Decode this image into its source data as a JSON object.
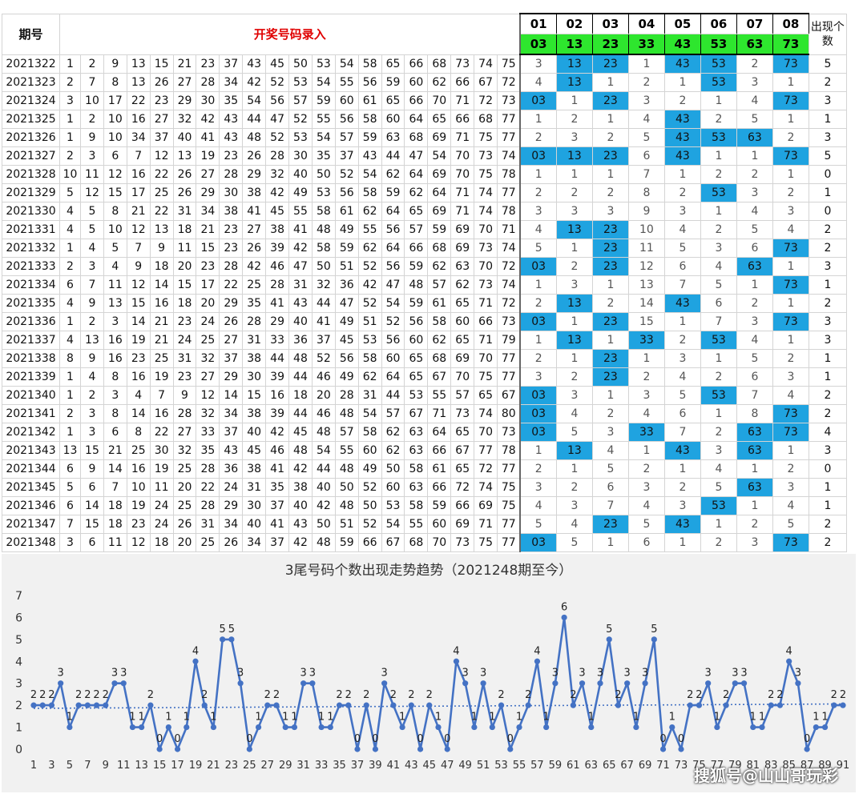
{
  "table": {
    "header": {
      "issue_label": "期号",
      "entry_label": "开奖号码录入",
      "positions": [
        "01",
        "02",
        "03",
        "04",
        "05",
        "06",
        "07",
        "08"
      ],
      "tails": [
        "03",
        "13",
        "23",
        "33",
        "43",
        "53",
        "63",
        "73"
      ],
      "count_label": "出现个数"
    },
    "rows": [
      {
        "issue": "2021322",
        "nums": [
          1,
          2,
          9,
          13,
          15,
          21,
          23,
          37,
          43,
          45,
          50,
          53,
          54,
          58,
          65,
          66,
          68,
          73,
          74,
          75
        ],
        "pos": [
          "3",
          "13",
          "23",
          "1",
          "43",
          "53",
          "2",
          "73"
        ],
        "count": "5"
      },
      {
        "issue": "2021323",
        "nums": [
          2,
          7,
          8,
          13,
          26,
          27,
          28,
          34,
          42,
          52,
          53,
          54,
          55,
          56,
          59,
          60,
          62,
          66,
          67,
          72
        ],
        "pos": [
          "4",
          "13",
          "1",
          "2",
          "1",
          "53",
          "3",
          "1"
        ],
        "count": "2"
      },
      {
        "issue": "2021324",
        "nums": [
          3,
          10,
          17,
          22,
          23,
          29,
          30,
          35,
          54,
          56,
          57,
          59,
          60,
          61,
          65,
          66,
          70,
          71,
          72,
          73
        ],
        "pos": [
          "03",
          "1",
          "23",
          "3",
          "2",
          "1",
          "4",
          "73"
        ],
        "count": "3"
      },
      {
        "issue": "2021325",
        "nums": [
          1,
          2,
          10,
          16,
          27,
          32,
          42,
          43,
          44,
          47,
          52,
          55,
          56,
          58,
          60,
          64,
          65,
          66,
          68,
          77
        ],
        "pos": [
          "1",
          "2",
          "1",
          "4",
          "43",
          "2",
          "5",
          "1"
        ],
        "count": "1"
      },
      {
        "issue": "2021326",
        "nums": [
          1,
          9,
          10,
          34,
          37,
          40,
          41,
          43,
          48,
          52,
          53,
          54,
          57,
          59,
          63,
          68,
          69,
          71,
          75,
          77
        ],
        "pos": [
          "2",
          "3",
          "2",
          "5",
          "43",
          "53",
          "63",
          "2"
        ],
        "count": "3"
      },
      {
        "issue": "2021327",
        "nums": [
          2,
          3,
          6,
          7,
          12,
          13,
          19,
          23,
          26,
          28,
          30,
          35,
          37,
          43,
          44,
          47,
          54,
          70,
          73,
          74
        ],
        "pos": [
          "03",
          "13",
          "23",
          "6",
          "43",
          "1",
          "1",
          "73"
        ],
        "count": "5"
      },
      {
        "issue": "2021328",
        "nums": [
          10,
          11,
          12,
          16,
          22,
          26,
          27,
          28,
          29,
          32,
          40,
          50,
          52,
          54,
          62,
          64,
          69,
          70,
          75,
          78
        ],
        "pos": [
          "1",
          "1",
          "1",
          "7",
          "1",
          "2",
          "2",
          "1"
        ],
        "count": "0"
      },
      {
        "issue": "2021329",
        "nums": [
          5,
          12,
          15,
          17,
          25,
          26,
          29,
          30,
          38,
          42,
          49,
          53,
          56,
          58,
          59,
          62,
          64,
          71,
          74,
          77
        ],
        "pos": [
          "2",
          "2",
          "2",
          "8",
          "2",
          "53",
          "3",
          "2"
        ],
        "count": "1"
      },
      {
        "issue": "2021330",
        "nums": [
          4,
          5,
          8,
          21,
          22,
          31,
          34,
          38,
          41,
          45,
          55,
          58,
          61,
          62,
          64,
          65,
          69,
          71,
          74,
          78
        ],
        "pos": [
          "3",
          "3",
          "3",
          "9",
          "3",
          "1",
          "4",
          "3"
        ],
        "count": "0"
      },
      {
        "issue": "2021331",
        "nums": [
          4,
          5,
          10,
          12,
          13,
          18,
          21,
          23,
          27,
          38,
          41,
          48,
          49,
          55,
          56,
          57,
          59,
          69,
          70,
          71
        ],
        "pos": [
          "4",
          "13",
          "23",
          "10",
          "4",
          "2",
          "5",
          "4"
        ],
        "count": "2"
      },
      {
        "issue": "2021332",
        "nums": [
          1,
          4,
          5,
          7,
          9,
          11,
          15,
          23,
          26,
          39,
          42,
          58,
          59,
          62,
          64,
          66,
          68,
          69,
          73,
          74
        ],
        "pos": [
          "5",
          "1",
          "23",
          "11",
          "5",
          "3",
          "6",
          "73"
        ],
        "count": "2"
      },
      {
        "issue": "2021333",
        "nums": [
          2,
          3,
          4,
          9,
          18,
          20,
          23,
          28,
          42,
          46,
          47,
          50,
          51,
          52,
          56,
          59,
          62,
          63,
          70,
          72
        ],
        "pos": [
          "03",
          "2",
          "23",
          "12",
          "6",
          "4",
          "63",
          "1"
        ],
        "count": "3"
      },
      {
        "issue": "2021334",
        "nums": [
          6,
          7,
          11,
          12,
          14,
          15,
          17,
          22,
          25,
          28,
          31,
          32,
          36,
          42,
          47,
          48,
          57,
          62,
          73,
          74
        ],
        "pos": [
          "1",
          "3",
          "1",
          "13",
          "7",
          "5",
          "1",
          "73"
        ],
        "count": "1"
      },
      {
        "issue": "2021335",
        "nums": [
          4,
          9,
          13,
          15,
          16,
          18,
          20,
          29,
          35,
          41,
          43,
          44,
          47,
          52,
          54,
          59,
          61,
          65,
          71,
          72
        ],
        "pos": [
          "2",
          "13",
          "2",
          "14",
          "43",
          "6",
          "2",
          "1"
        ],
        "count": "2"
      },
      {
        "issue": "2021336",
        "nums": [
          1,
          2,
          3,
          14,
          21,
          23,
          24,
          26,
          28,
          29,
          40,
          41,
          49,
          51,
          52,
          56,
          58,
          60,
          66,
          73
        ],
        "pos": [
          "03",
          "1",
          "23",
          "15",
          "1",
          "7",
          "3",
          "73"
        ],
        "count": "3"
      },
      {
        "issue": "2021337",
        "nums": [
          4,
          13,
          16,
          19,
          21,
          24,
          25,
          27,
          31,
          33,
          36,
          37,
          45,
          53,
          56,
          60,
          62,
          65,
          71,
          79
        ],
        "pos": [
          "1",
          "13",
          "1",
          "33",
          "2",
          "53",
          "4",
          "1"
        ],
        "count": "3"
      },
      {
        "issue": "2021338",
        "nums": [
          8,
          9,
          16,
          23,
          25,
          31,
          32,
          37,
          38,
          44,
          48,
          52,
          56,
          58,
          60,
          65,
          68,
          69,
          70,
          77
        ],
        "pos": [
          "2",
          "1",
          "23",
          "1",
          "3",
          "1",
          "5",
          "2"
        ],
        "count": "1"
      },
      {
        "issue": "2021339",
        "nums": [
          1,
          4,
          8,
          16,
          19,
          23,
          27,
          29,
          30,
          39,
          44,
          46,
          49,
          62,
          64,
          65,
          67,
          70,
          75,
          77
        ],
        "pos": [
          "3",
          "2",
          "23",
          "2",
          "4",
          "2",
          "6",
          "3"
        ],
        "count": "1"
      },
      {
        "issue": "2021340",
        "nums": [
          1,
          2,
          3,
          4,
          7,
          9,
          12,
          14,
          15,
          16,
          18,
          20,
          28,
          31,
          44,
          53,
          55,
          57,
          65,
          67
        ],
        "pos": [
          "03",
          "3",
          "1",
          "3",
          "5",
          "53",
          "7",
          "4"
        ],
        "count": "2"
      },
      {
        "issue": "2021341",
        "nums": [
          2,
          3,
          8,
          14,
          16,
          28,
          32,
          34,
          38,
          39,
          44,
          46,
          48,
          54,
          57,
          67,
          71,
          73,
          74,
          80
        ],
        "pos": [
          "03",
          "4",
          "2",
          "4",
          "6",
          "1",
          "8",
          "73"
        ],
        "count": "2"
      },
      {
        "issue": "2021342",
        "nums": [
          1,
          3,
          6,
          8,
          22,
          27,
          33,
          37,
          40,
          42,
          45,
          48,
          57,
          58,
          62,
          63,
          64,
          65,
          70,
          73
        ],
        "pos": [
          "03",
          "5",
          "3",
          "33",
          "7",
          "2",
          "63",
          "73"
        ],
        "count": "4"
      },
      {
        "issue": "2021343",
        "nums": [
          13,
          15,
          21,
          25,
          30,
          32,
          35,
          43,
          45,
          46,
          48,
          54,
          55,
          60,
          62,
          63,
          66,
          67,
          77,
          78
        ],
        "pos": [
          "1",
          "13",
          "4",
          "1",
          "43",
          "3",
          "63",
          "1"
        ],
        "count": "3"
      },
      {
        "issue": "2021344",
        "nums": [
          6,
          9,
          14,
          16,
          19,
          25,
          28,
          36,
          38,
          41,
          42,
          44,
          48,
          49,
          50,
          58,
          61,
          65,
          72,
          77
        ],
        "pos": [
          "2",
          "1",
          "5",
          "2",
          "1",
          "4",
          "1",
          "2"
        ],
        "count": "0"
      },
      {
        "issue": "2021345",
        "nums": [
          5,
          6,
          7,
          10,
          11,
          20,
          22,
          24,
          31,
          35,
          38,
          40,
          50,
          52,
          60,
          63,
          66,
          72,
          74,
          75
        ],
        "pos": [
          "3",
          "2",
          "6",
          "3",
          "2",
          "5",
          "63",
          "3"
        ],
        "count": "1"
      },
      {
        "issue": "2021346",
        "nums": [
          6,
          14,
          18,
          19,
          24,
          25,
          28,
          29,
          30,
          37,
          40,
          42,
          48,
          50,
          53,
          58,
          59,
          66,
          69,
          75
        ],
        "pos": [
          "4",
          "3",
          "7",
          "4",
          "3",
          "53",
          "1",
          "4"
        ],
        "count": "1"
      },
      {
        "issue": "2021347",
        "nums": [
          7,
          15,
          18,
          23,
          24,
          26,
          31,
          34,
          40,
          41,
          43,
          50,
          51,
          52,
          54,
          55,
          60,
          69,
          71,
          77
        ],
        "pos": [
          "5",
          "4",
          "23",
          "5",
          "43",
          "1",
          "2",
          "5"
        ],
        "count": "2"
      },
      {
        "issue": "2021348",
        "nums": [
          3,
          6,
          11,
          12,
          18,
          20,
          25,
          26,
          34,
          37,
          42,
          48,
          59,
          66,
          67,
          68,
          70,
          73,
          75,
          77
        ],
        "pos": [
          "03",
          "5",
          "1",
          "6",
          "1",
          "2",
          "3",
          "73"
        ],
        "count": "2"
      }
    ]
  },
  "chart_data": {
    "type": "line",
    "title": "3尾号码个数出现走势趋势（2021248期至今）",
    "xlabel": "",
    "ylabel": "",
    "ylim": [
      0,
      7
    ],
    "yticks": [
      "0",
      "1",
      "2",
      "3",
      "4",
      "5",
      "6",
      "7"
    ],
    "xticks": [
      "1",
      "3",
      "5",
      "7",
      "9",
      "11",
      "13",
      "15",
      "17",
      "19",
      "21",
      "23",
      "25",
      "27",
      "29",
      "31",
      "33",
      "35",
      "37",
      "39",
      "41",
      "43",
      "45",
      "47",
      "49",
      "51",
      "53",
      "55",
      "57",
      "59",
      "61",
      "63",
      "65",
      "67",
      "69",
      "71",
      "73",
      "75",
      "77",
      "79",
      "81",
      "83",
      "85",
      "87",
      "89",
      "91"
    ],
    "x": [
      1,
      2,
      3,
      4,
      5,
      6,
      7,
      8,
      9,
      10,
      11,
      12,
      13,
      14,
      15,
      16,
      17,
      18,
      19,
      20,
      21,
      22,
      23,
      24,
      25,
      26,
      27,
      28,
      29,
      30,
      31,
      32,
      33,
      34,
      35,
      36,
      37,
      38,
      39,
      40,
      41,
      42,
      43,
      44,
      45,
      46,
      47,
      48,
      49,
      50,
      51,
      52,
      53,
      54,
      55,
      56,
      57,
      58,
      59,
      60,
      61,
      62,
      63,
      64,
      65,
      66,
      67,
      68,
      69,
      70,
      71,
      72,
      73,
      74,
      75,
      76,
      77,
      78,
      79,
      80,
      81,
      82,
      83,
      84,
      85,
      86,
      87,
      88,
      89,
      90,
      91
    ],
    "values": [
      2,
      2,
      2,
      3,
      1,
      2,
      2,
      2,
      2,
      3,
      3,
      1,
      1,
      2,
      0,
      1,
      0,
      1,
      4,
      2,
      1,
      5,
      5,
      3,
      0,
      1,
      2,
      2,
      1,
      1,
      3,
      3,
      1,
      1,
      2,
      2,
      0,
      2,
      0,
      3,
      2,
      1,
      2,
      0,
      2,
      1,
      0,
      4,
      3,
      1,
      3,
      1,
      2,
      0,
      1,
      2,
      4,
      1,
      3,
      6,
      2,
      3,
      1,
      3,
      5,
      2,
      3,
      1,
      3,
      5,
      0,
      1,
      0,
      2,
      2,
      3,
      1,
      2,
      3,
      3,
      1,
      1,
      2,
      2,
      4,
      3,
      0,
      1,
      1,
      2,
      2
    ],
    "trendline": {
      "style": "dotted",
      "start": 1.86,
      "end": 2.06
    },
    "grid": false,
    "line_color": "#4472c4",
    "trend_color": "#4472c4"
  },
  "watermark": "搜狐号@山山哥玩彩"
}
